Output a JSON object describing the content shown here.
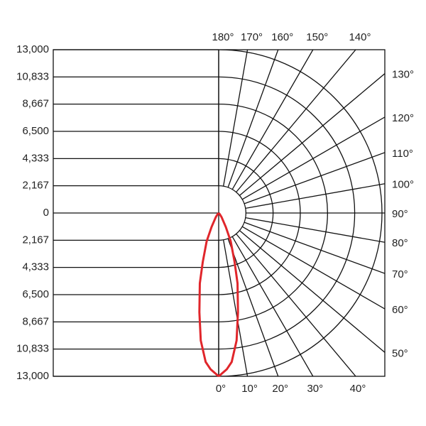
{
  "chart_data": {
    "type": "polar",
    "rlim": [
      0,
      13000
    ],
    "rticks": [
      0,
      {
        "value": 2167,
        "label": "2,167"
      },
      {
        "value": 4333,
        "label": "4,333"
      },
      {
        "value": 6500,
        "label": "6,500"
      },
      {
        "value": 8667,
        "label": "8,667"
      },
      {
        "value": 10833,
        "label": "10,833"
      },
      {
        "value": 13000,
        "label": "13,000"
      }
    ],
    "angle_ticks": [
      {
        "value": 0,
        "label": "0°"
      },
      {
        "value": 10,
        "label": "10°"
      },
      {
        "value": 20,
        "label": "20°"
      },
      {
        "value": 30,
        "label": "30°"
      },
      {
        "value": 40,
        "label": "40°"
      },
      {
        "value": 50,
        "label": "50°"
      },
      {
        "value": 60,
        "label": "60°"
      },
      {
        "value": 70,
        "label": "70°"
      },
      {
        "value": 80,
        "label": "80°"
      },
      {
        "value": 90,
        "label": "90°"
      },
      {
        "value": 100,
        "label": "100°"
      },
      {
        "value": 110,
        "label": "110°"
      },
      {
        "value": 120,
        "label": "120°"
      },
      {
        "value": 130,
        "label": "130°"
      },
      {
        "value": 140,
        "label": "140°"
      },
      {
        "value": 150,
        "label": "150°"
      },
      {
        "value": 160,
        "label": "160°"
      },
      {
        "value": 170,
        "label": "170°"
      },
      {
        "value": 180,
        "label": "180°"
      }
    ],
    "series": [
      {
        "color": "#e0262b",
        "angles": [
          0,
          3,
          5,
          8,
          11,
          15,
          18,
          23,
          27,
          35,
          45,
          90
        ],
        "values": [
          13000,
          12450,
          11900,
          10250,
          8050,
          5800,
          4100,
          2450,
          1250,
          400,
          100,
          0
        ]
      }
    ]
  }
}
